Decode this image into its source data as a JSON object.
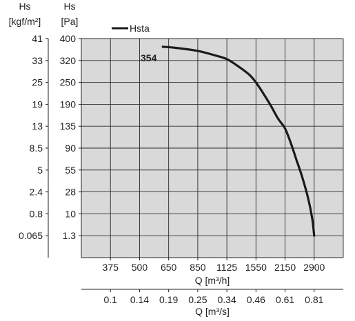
{
  "chart_data": {
    "type": "line",
    "left_axis_outer": {
      "title": "Hs",
      "unit": "[kgf/m²]",
      "ticks": [
        "41",
        "33",
        "25",
        "19",
        "13",
        "8.5",
        "5",
        "2.4",
        "0.8",
        "0.065"
      ]
    },
    "left_axis_inner": {
      "title": "Hs",
      "unit": "[Pa]",
      "ticks": [
        "400",
        "320",
        "250",
        "190",
        "135",
        "90",
        "55",
        "28",
        "10",
        "1.3"
      ]
    },
    "x_axis_primary": {
      "label": "Q [m³/h]",
      "ticks": [
        "375",
        "500",
        "650",
        "850",
        "1125",
        "1550",
        "2150",
        "2900"
      ]
    },
    "x_axis_secondary": {
      "label": "Q [m³/s]",
      "ticks": [
        "0.1",
        "0.14",
        "0.19",
        "0.25",
        "0.34",
        "0.46",
        "0.61",
        "0.81"
      ]
    },
    "series": [
      {
        "name": "Hsta",
        "annotation": "354",
        "color": "#1a1a1a",
        "x_unit": "m³/h",
        "y_unit": "Pa",
        "points": [
          [
            620,
            370
          ],
          [
            700,
            366
          ],
          [
            850,
            355
          ],
          [
            1000,
            340
          ],
          [
            1125,
            325
          ],
          [
            1300,
            300
          ],
          [
            1450,
            275
          ],
          [
            1550,
            250
          ],
          [
            1700,
            220
          ],
          [
            1850,
            188
          ],
          [
            2000,
            155
          ],
          [
            2150,
            130
          ],
          [
            2300,
            100
          ],
          [
            2450,
            70
          ],
          [
            2600,
            45
          ],
          [
            2750,
            22
          ],
          [
            2850,
            8
          ],
          [
            2900,
            1.3
          ]
        ]
      }
    ],
    "legend_position": "top-left",
    "grid": true
  }
}
